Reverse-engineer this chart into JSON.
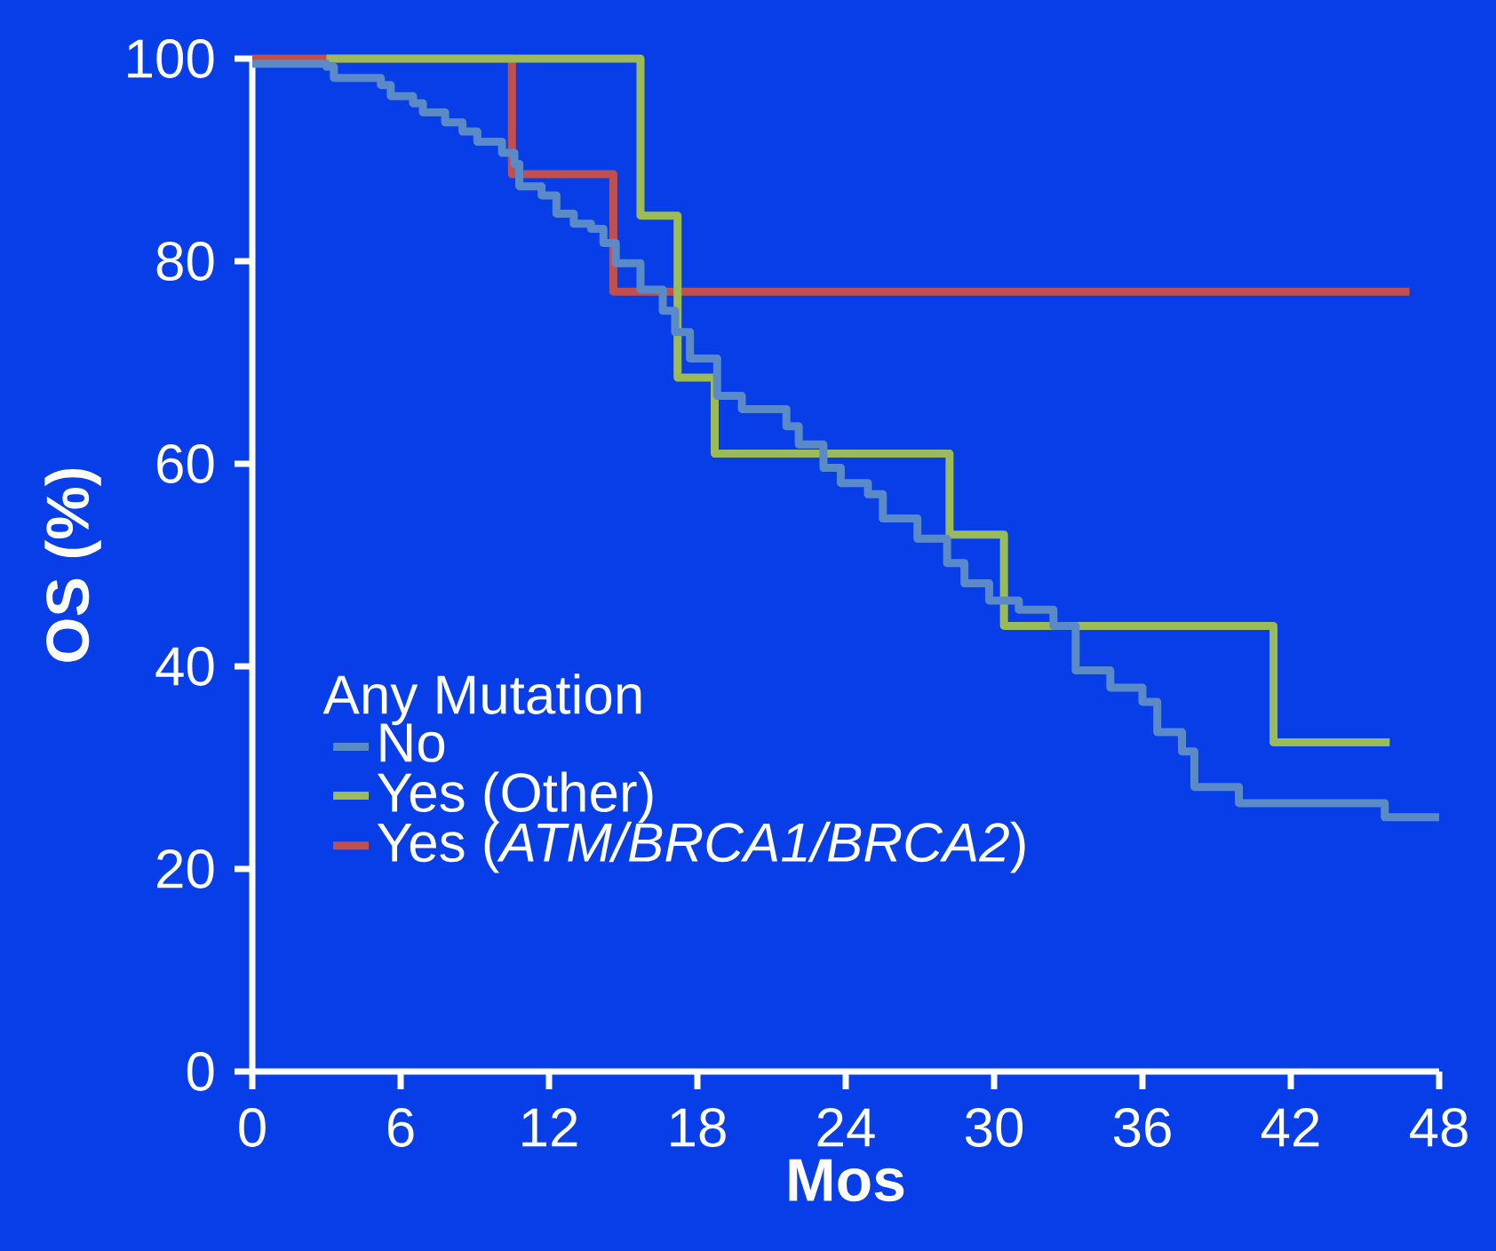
{
  "chart_data": {
    "type": "step",
    "xlabel": "Mos",
    "ylabel": "OS (%)",
    "legend_title": "Any Mutation",
    "legend": "bottom left",
    "marker": "none",
    "grid": false,
    "xlim": [
      0,
      48
    ],
    "ylim": [
      0,
      100
    ],
    "xticks": [
      0,
      6,
      12,
      18,
      24,
      30,
      36,
      42,
      48
    ],
    "yticks": [
      0,
      20,
      40,
      60,
      80,
      100
    ],
    "series": [
      {
        "name": "No",
        "color": "#5b8ac8",
        "x": [
          0,
          3.0,
          3.3,
          5.2,
          5.6,
          6.5,
          6.9,
          7.8,
          8.5,
          9.1,
          10.1,
          10.6,
          10.8,
          11.7,
          12.3,
          13.0,
          13.7,
          14.2,
          14.7,
          15.7,
          16.6,
          17.1,
          17.7,
          18.8,
          19.8,
          21.6,
          22.1,
          23.1,
          23.8,
          24.9,
          25.5,
          26.9,
          28.1,
          28.8,
          29.8,
          31.0,
          32.4,
          33.3,
          34.7,
          36.0,
          36.6,
          37.6,
          38.1,
          39.9,
          45.8,
          48
        ],
        "values": [
          99.5,
          99.2,
          98.1,
          97.4,
          96.3,
          95.6,
          94.7,
          93.7,
          92.8,
          91.8,
          90.7,
          89.6,
          87.4,
          86.5,
          84.7,
          83.7,
          83.2,
          81.8,
          79.8,
          77.2,
          75.1,
          73.0,
          70.4,
          66.7,
          65.4,
          63.7,
          61.9,
          59.6,
          58.1,
          57.0,
          54.6,
          52.6,
          50.2,
          48.2,
          46.5,
          45.6,
          44.0,
          39.6,
          37.9,
          36.5,
          33.5,
          31.6,
          28.1,
          26.5,
          25.1,
          25.1
        ]
      },
      {
        "name": "Yes (Other)",
        "color": "#9bbb59",
        "x": [
          3,
          15.7,
          17.2,
          18.7,
          28.2,
          30.4,
          41.3,
          46
        ],
        "values": [
          100,
          84.5,
          68.5,
          61,
          53,
          44,
          32.5,
          32.5
        ]
      },
      {
        "name": "Yes (*ATM/BRCA1/BRCA2*)",
        "color": "#c0504d",
        "x": [
          0,
          10.5,
          14.6,
          46.8
        ],
        "values": [
          100,
          88.6,
          77,
          77
        ]
      }
    ]
  }
}
